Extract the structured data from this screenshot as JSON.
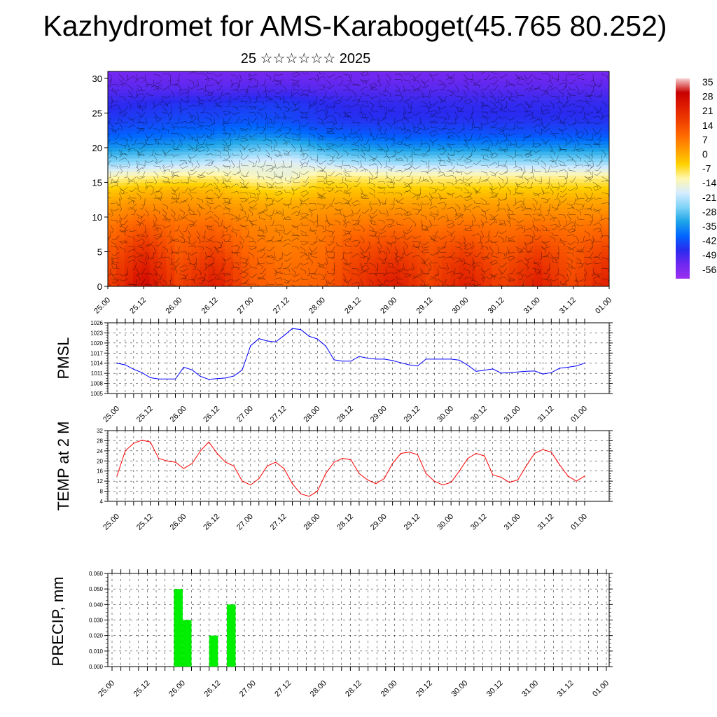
{
  "title": "Kazhydromet for AMS-Karaboget(45.765 80.252)",
  "subtitle": "25 ☆☆☆☆☆☆ 2025",
  "time_ticks": [
    "25.00",
    "25.12",
    "26.00",
    "26.12",
    "27.00",
    "27.12",
    "28.00",
    "28.12",
    "29.00",
    "29.12",
    "30.00",
    "30.12",
    "31.00",
    "31.12",
    "01.00"
  ],
  "chart_data": [
    {
      "type": "heatmap",
      "panel": "cross-section",
      "x_categories": [
        "25.00",
        "25.12",
        "26.00",
        "26.12",
        "27.00",
        "27.12",
        "28.00",
        "28.12",
        "29.00",
        "29.12",
        "30.00",
        "30.12",
        "31.00",
        "31.12",
        "01.00"
      ],
      "y_ticks": [
        0,
        5,
        10,
        15,
        20,
        25,
        30
      ],
      "ylim": [
        0,
        31
      ],
      "colorbar": {
        "labels": [
          "35",
          "28",
          "21",
          "14",
          "7",
          "0",
          "-7",
          "-14",
          "-21",
          "-28",
          "-35",
          "-42",
          "-49",
          "-56"
        ],
        "colors": [
          "#f6d0d0",
          "#c80000",
          "#e01e00",
          "#f04000",
          "#ff6a00",
          "#ff9d00",
          "#ffd200",
          "#fff8b0",
          "#d6ecff",
          "#7fd3f7",
          "#1fa5e8",
          "#0066ff",
          "#2a2aef",
          "#6f28f0",
          "#9b2ff0"
        ]
      },
      "layers_temperature": [
        {
          "y": 30.5,
          "values": [
            -56,
            -56,
            -56,
            -56,
            -56,
            -56,
            -56,
            -56,
            -56,
            -56,
            -56,
            -56,
            -56,
            -56,
            -56
          ]
        },
        {
          "y": 28.5,
          "values": [
            -53,
            -53,
            -53,
            -53,
            -52,
            -52,
            -53,
            -53,
            -53,
            -53,
            -53,
            -53,
            -53,
            -53,
            -53
          ]
        },
        {
          "y": 26.5,
          "values": [
            -49,
            -48,
            -47,
            -47,
            -46,
            -46,
            -48,
            -49,
            -49,
            -49,
            -49,
            -49,
            -49,
            -49,
            -49
          ]
        },
        {
          "y": 24,
          "values": [
            -46,
            -45,
            -44,
            -44,
            -43,
            -44,
            -46,
            -47,
            -47,
            -47,
            -47,
            -47,
            -47,
            -47,
            -47
          ]
        },
        {
          "y": 22,
          "values": [
            -42,
            -41,
            -40,
            -39,
            -37,
            -38,
            -41,
            -42,
            -43,
            -43,
            -43,
            -43,
            -43,
            -43,
            -43
          ]
        },
        {
          "y": 20,
          "values": [
            -35,
            -34,
            -33,
            -31,
            -28,
            -27,
            -32,
            -34,
            -35,
            -35,
            -35,
            -35,
            -35,
            -35,
            -35
          ]
        },
        {
          "y": 18,
          "values": [
            -25,
            -24,
            -22,
            -20,
            -17,
            -16,
            -21,
            -23,
            -24,
            -24,
            -24,
            -24,
            -24,
            -24,
            -24
          ]
        },
        {
          "y": 16,
          "values": [
            -12,
            -10,
            -9,
            -9,
            -12,
            -14,
            -8,
            -9,
            -10,
            -10,
            -10,
            -10,
            -10,
            -10,
            -10
          ]
        },
        {
          "y": 14,
          "values": [
            -2,
            0,
            1,
            0,
            -3,
            -5,
            -1,
            -1,
            -2,
            -2,
            -2,
            -2,
            -2,
            -2,
            -2
          ]
        },
        {
          "y": 12,
          "values": [
            4,
            6,
            6,
            5,
            3,
            2,
            4,
            4,
            4,
            4,
            4,
            4,
            4,
            4,
            4
          ]
        },
        {
          "y": 9,
          "values": [
            10,
            14,
            11,
            12,
            8,
            7,
            9,
            10,
            11,
            10,
            11,
            10,
            11,
            10,
            11
          ]
        },
        {
          "y": 6,
          "values": [
            14,
            22,
            14,
            18,
            11,
            9,
            11,
            16,
            18,
            15,
            18,
            14,
            18,
            14,
            18
          ]
        },
        {
          "y": 3,
          "values": [
            17,
            28,
            17,
            24,
            14,
            11,
            13,
            20,
            24,
            18,
            24,
            17,
            24,
            16,
            24
          ]
        },
        {
          "y": 0.5,
          "values": [
            19,
            32,
            19,
            28,
            15,
            12,
            14,
            22,
            28,
            19,
            27,
            19,
            27,
            18,
            27
          ]
        }
      ]
    },
    {
      "type": "line",
      "panel": "pmsl",
      "ylabel": "PMSL",
      "ylim": [
        1005,
        1026
      ],
      "y_ticks": [
        1005,
        1008,
        1011,
        1014,
        1017,
        1020,
        1023,
        1026
      ],
      "categories": [
        "25.00",
        "25.12",
        "26.00",
        "26.12",
        "27.00",
        "27.12",
        "28.00",
        "28.12",
        "29.00",
        "29.12",
        "30.00",
        "30.12",
        "31.00",
        "31.12",
        "01.00"
      ],
      "x": [
        0,
        0.25,
        0.5,
        0.75,
        1,
        1.25,
        1.5,
        1.75,
        2,
        2.25,
        2.5,
        2.75,
        3,
        3.25,
        3.5,
        3.75,
        4,
        4.25,
        4.5,
        4.75,
        5,
        5.25,
        5.5,
        5.75,
        6,
        6.25,
        6.5,
        6.75,
        7,
        7.25,
        7.5,
        7.75,
        8,
        8.25,
        8.5,
        8.75,
        9,
        9.25,
        9.5,
        9.75,
        10,
        10.25,
        10.5,
        10.75,
        11,
        11.25,
        11.5,
        11.75,
        12,
        12.25,
        12.5,
        12.75,
        13,
        13.25,
        13.5,
        13.75,
        14
      ],
      "series": [
        {
          "color": "#0000ff",
          "values": [
            1014,
            1013.5,
            1012.2,
            1011.2,
            1009.7,
            1009.3,
            1009.3,
            1009.3,
            1012.8,
            1012,
            1010.1,
            1009.2,
            1009.4,
            1009.6,
            1010.2,
            1012,
            1019.2,
            1021.3,
            1020.6,
            1020.3,
            1022.2,
            1024.3,
            1024,
            1022,
            1021.2,
            1019.1,
            1015,
            1014.6,
            1014.6,
            1016,
            1015.5,
            1015.2,
            1015.2,
            1014.8,
            1014.1,
            1013.5,
            1013.2,
            1015.2,
            1015.2,
            1015.2,
            1015.2,
            1014.9,
            1013.4,
            1011.6,
            1011.9,
            1012.3,
            1011.1,
            1011.2,
            1011.4,
            1011.6,
            1011.7,
            1010.8,
            1011.2,
            1012.5,
            1012.8,
            1013.2,
            1014
          ]
        }
      ]
    },
    {
      "type": "line",
      "panel": "temp2m",
      "ylabel": "TEMP at 2 M",
      "ylim": [
        4,
        32
      ],
      "y_ticks": [
        4,
        8,
        12,
        16,
        20,
        24,
        28,
        32
      ],
      "categories": [
        "25.00",
        "25.12",
        "26.00",
        "26.12",
        "27.00",
        "27.12",
        "28.00",
        "28.12",
        "29.00",
        "29.12",
        "30.00",
        "30.12",
        "31.00",
        "31.12",
        "01.00"
      ],
      "x": [
        0,
        0.25,
        0.5,
        0.75,
        1,
        1.25,
        1.5,
        1.75,
        2,
        2.25,
        2.5,
        2.75,
        3,
        3.25,
        3.5,
        3.75,
        4,
        4.25,
        4.5,
        4.75,
        5,
        5.25,
        5.5,
        5.75,
        6,
        6.25,
        6.5,
        6.75,
        7,
        7.25,
        7.5,
        7.75,
        8,
        8.25,
        8.5,
        8.75,
        9,
        9.25,
        9.5,
        9.75,
        10,
        10.25,
        10.5,
        10.75,
        11,
        11.25,
        11.5,
        11.75,
        12,
        12.25,
        12.5,
        12.75,
        13,
        13.25,
        13.5,
        13.75,
        14
      ],
      "series": [
        {
          "color": "#ff0000",
          "values": [
            14,
            24,
            27,
            28.2,
            27.5,
            21,
            20,
            19.5,
            17,
            19,
            24,
            27.5,
            23,
            19.5,
            18,
            12,
            10.5,
            13,
            18,
            19.5,
            17,
            11,
            7,
            6,
            8,
            15,
            19.5,
            21,
            20.5,
            15,
            12.5,
            11,
            13,
            19,
            23,
            23.5,
            22.5,
            15,
            12,
            10.5,
            11.5,
            16,
            21,
            23,
            22,
            14.5,
            13.5,
            11.5,
            12.5,
            18,
            23,
            24.5,
            23.5,
            18.5,
            14,
            12,
            14
          ]
        }
      ]
    },
    {
      "type": "bar",
      "panel": "precip",
      "ylabel": "PRECIP, mm",
      "ylim": [
        0,
        0.06
      ],
      "y_ticks": [
        "0.000",
        "0.010",
        "0.020",
        "0.030",
        "0.040",
        "0.050",
        "0.060"
      ],
      "categories": [
        "25.00",
        "25.12",
        "26.00",
        "26.12",
        "27.00",
        "27.12",
        "28.00",
        "28.12",
        "29.00",
        "29.12",
        "30.00",
        "30.12",
        "31.00",
        "31.12",
        "01.00"
      ],
      "bars": [
        {
          "x": 1.875,
          "value": 0.05
        },
        {
          "x": 2.125,
          "value": 0.03
        },
        {
          "x": 2.875,
          "value": 0.02
        },
        {
          "x": 3.375,
          "value": 0.04
        }
      ],
      "bar_color": "#00ee00"
    }
  ]
}
